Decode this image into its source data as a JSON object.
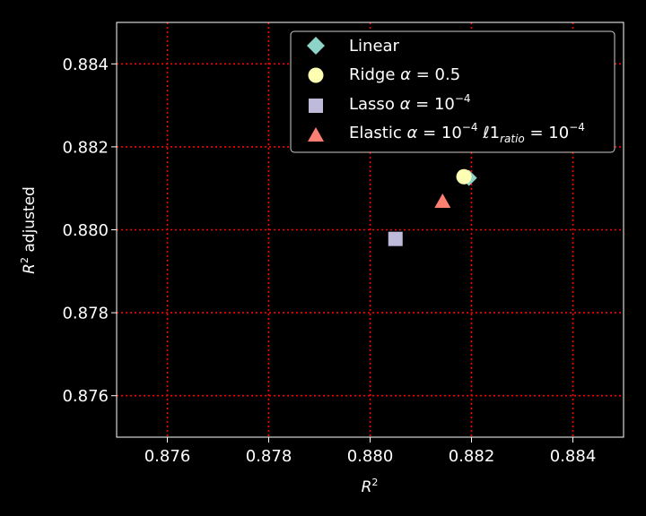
{
  "chart_data": {
    "type": "scatter",
    "xlabel": "R²",
    "ylabel": "R² adjusted",
    "xlim": [
      0.875,
      0.885
    ],
    "ylim": [
      0.875,
      0.885
    ],
    "x_ticks": [
      0.876,
      0.878,
      0.88,
      0.882,
      0.884
    ],
    "y_ticks": [
      0.876,
      0.878,
      0.88,
      0.882,
      0.884
    ],
    "x_tick_labels": [
      "0.876",
      "0.878",
      "0.880",
      "0.882",
      "0.884"
    ],
    "y_tick_labels": [
      "0.876",
      "0.878",
      "0.880",
      "0.882",
      "0.884"
    ],
    "grid": true,
    "grid_color": "#ff0000",
    "background": "#000000",
    "legend_position": "top-right",
    "series": [
      {
        "name": "Linear",
        "marker": "diamond",
        "color": "#8dd3c7",
        "x": 0.88195,
        "y": 0.88125
      },
      {
        "name": "Ridge α = 0.5",
        "marker": "circle",
        "color": "#ffffb3",
        "x": 0.88185,
        "y": 0.88128
      },
      {
        "name": "Lasso α = 10⁻⁴",
        "marker": "square",
        "color": "#bebada",
        "x": 0.8805,
        "y": 0.87978
      },
      {
        "name": "Elastic α = 10⁻⁴ ℓ1ratio = 10⁻⁴",
        "marker": "triangle",
        "color": "#fb8072",
        "x": 0.88143,
        "y": 0.88068
      }
    ]
  }
}
